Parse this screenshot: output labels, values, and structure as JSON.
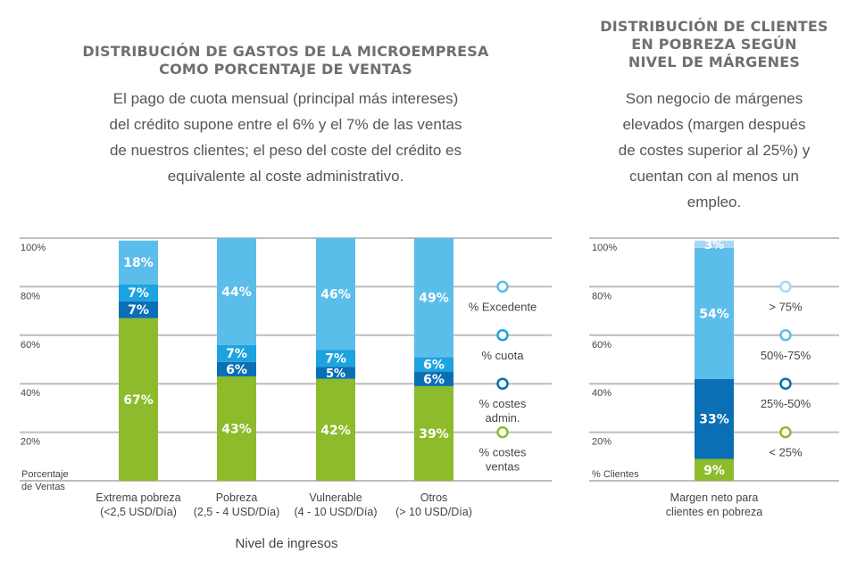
{
  "left_panel": {
    "title_line1": "DISTRIBUCIÓN DE GASTOS DE LA MICROEMPRESA",
    "title_line2": "COMO PORCENTAJE DE VENTAS",
    "description_lines": [
      "El pago de cuota mensual (principal más intereses)",
      "del crédito supone entre el 6% y el 7% de las ventas",
      "de nuestros clientes; el peso del coste del crédito es",
      "equivalente al coste administrativo."
    ]
  },
  "right_panel": {
    "title_lines": [
      "DISTRIBUCIÓN DE CLIENTES",
      "EN POBREZA SEGÚN",
      "NIVEL DE MÁRGENES"
    ],
    "description_lines": [
      "Son negocio de márgenes",
      "elevados (margen después",
      "de costes superior al 25%) y",
      "cuentan con al menos un",
      "empleo."
    ]
  },
  "colors": {
    "green": "#8dbb2b",
    "dark_blue": "#0a6fb5",
    "mid_blue": "#1ca3e0",
    "light_blue": "#5bbdea",
    "pale_blue": "#a8d8f2",
    "gridline": "#bdbdbd"
  },
  "chart_data": [
    {
      "type": "bar",
      "stacked": true,
      "categories": [
        "Extrema pobreza",
        "Pobreza",
        "Vulnerable",
        "Otros"
      ],
      "category_sublabels": [
        "(<2,5 USD/Día)",
        "(2,5 - 4 USD/Día)",
        "(4 - 10 USD/Día)",
        "(> 10 USD/Día)"
      ],
      "xlabel": "Nivel de ingresos",
      "ylabel_lines": [
        "Porcentaje",
        "de Ventas"
      ],
      "y_ticks": [
        "100%",
        "80%",
        "60%",
        "40%",
        "20%"
      ],
      "ylim": [
        0,
        100
      ],
      "grid": true,
      "legend_position": "right",
      "series": [
        {
          "name": "% costes ventas",
          "label_lines": [
            "% costes",
            "ventas"
          ],
          "color": "#8dbb2b",
          "legend_marker": "#8dbb2b",
          "values": [
            67,
            43,
            42,
            39
          ],
          "labels": [
            "67%",
            "43%",
            "42%",
            "39%"
          ]
        },
        {
          "name": "% costes admin.",
          "label_lines": [
            "% costes",
            "admin."
          ],
          "color": "#0a6fb5",
          "legend_marker": "#0a6fb5",
          "values": [
            7,
            6,
            5,
            6
          ],
          "labels": [
            "7%",
            "6%",
            "5%",
            "6%"
          ]
        },
        {
          "name": "% cuota",
          "label_lines": [
            "% cuota"
          ],
          "color": "#1ca3e0",
          "legend_marker": "#1ca3e0",
          "values": [
            7,
            7,
            7,
            6
          ],
          "labels": [
            "7%",
            "7%",
            "7%",
            "6%"
          ]
        },
        {
          "name": "% Excedente",
          "label_lines": [
            "% Excedente"
          ],
          "color": "#5bbdea",
          "legend_marker": "#5bbdea",
          "values": [
            18,
            44,
            46,
            49
          ],
          "labels": [
            "18%",
            "44%",
            "46%",
            "49%"
          ]
        }
      ]
    },
    {
      "type": "bar",
      "stacked": true,
      "categories": [
        "Margen neto para clientes en pobreza"
      ],
      "category_label_lines": [
        "Margen neto para",
        "clientes en pobreza"
      ],
      "ylabel_lines": [
        "% Clientes"
      ],
      "y_ticks": [
        "100%",
        "80%",
        "60%",
        "40%",
        "20%"
      ],
      "ylim": [
        0,
        100
      ],
      "grid": true,
      "legend_position": "right",
      "series": [
        {
          "name": "< 25%",
          "label_lines": [
            "< 25%"
          ],
          "color": "#8dbb2b",
          "legend_marker": "#8dbb2b",
          "values": [
            9
          ],
          "labels": [
            "9%"
          ]
        },
        {
          "name": "25%-50%",
          "label_lines": [
            "25%-50%"
          ],
          "color": "#0a6fb5",
          "legend_marker": "#0a6fb5",
          "values": [
            33
          ],
          "labels": [
            "33%"
          ]
        },
        {
          "name": "50%-75%",
          "label_lines": [
            "50%-75%"
          ],
          "color": "#5bbdea",
          "legend_marker": "#5bbdea",
          "values": [
            54
          ],
          "labels": [
            "54%"
          ]
        },
        {
          "name": "> 75%",
          "label_lines": [
            "> 75%"
          ],
          "color": "#a8d8f2",
          "legend_marker": "#a8d8f2",
          "values": [
            3
          ],
          "labels": [
            "3%"
          ]
        }
      ]
    }
  ]
}
